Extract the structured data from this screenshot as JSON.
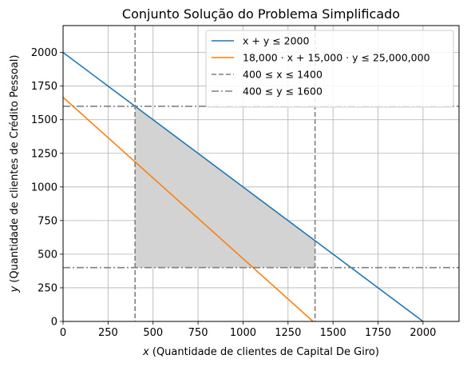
{
  "chart_data": {
    "type": "line",
    "title": "Conjunto Solução do Problema Simplificado",
    "xlabel_var": "x",
    "xlabel_text": " (Quantidade de clientes de Capital De Giro)",
    "ylabel_var": "y",
    "ylabel_text": " (Quantidade de clientes de Crédito Pessoal)",
    "xlim": [
      0,
      2200
    ],
    "ylim": [
      0,
      2200
    ],
    "x_ticks": [
      0,
      250,
      500,
      750,
      1000,
      1250,
      1500,
      1750,
      2000
    ],
    "y_ticks": [
      0,
      250,
      500,
      750,
      1000,
      1250,
      1500,
      1750,
      2000
    ],
    "grid": true,
    "legend_position": "top-right",
    "series": [
      {
        "name": "x + y ≤ 2000",
        "style": "solid",
        "color": "#1f77b4",
        "points": [
          [
            0,
            2000
          ],
          [
            2000,
            0
          ]
        ]
      },
      {
        "name": "18,000 · x + 15,000 · y ≤ 25,000,000",
        "style": "solid",
        "color": "#ff7f0e",
        "points": [
          [
            0,
            1666.67
          ],
          [
            1388.89,
            0
          ]
        ]
      },
      {
        "name": "400 ≤ x ≤ 1400",
        "style": "dashed",
        "color": "#808080",
        "vertical_at": [
          400,
          1400
        ]
      },
      {
        "name": "400 ≤ y ≤ 1600",
        "style": "dashdot",
        "color": "#808080",
        "horizontal_at": [
          400,
          1600
        ]
      }
    ],
    "feasible_region": {
      "color": "#d3d3d3",
      "points": [
        [
          400,
          1600
        ],
        [
          1400,
          600
        ],
        [
          1400,
          400
        ],
        [
          400,
          400
        ]
      ]
    }
  }
}
